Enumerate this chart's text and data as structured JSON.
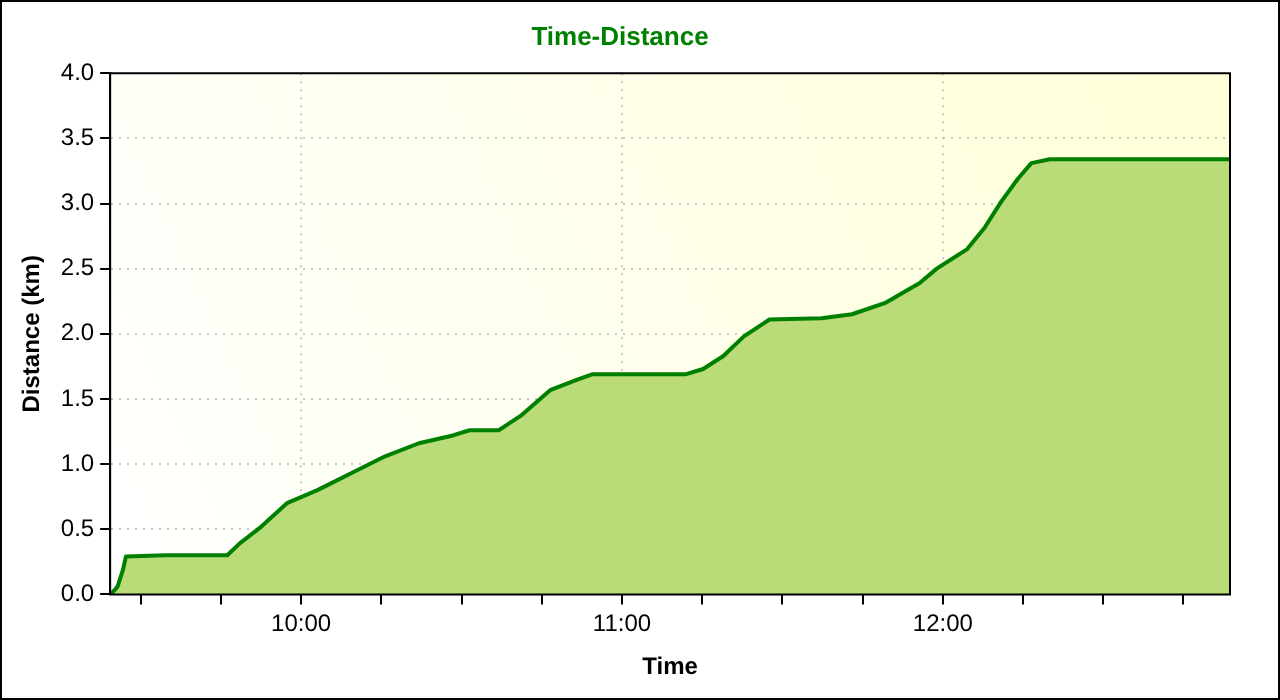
{
  "chart_data": {
    "type": "area",
    "title": "Time-Distance",
    "xlabel": "Time",
    "ylabel": "Distance (km)",
    "x": [
      9.407,
      9.428,
      9.445,
      9.454,
      9.576,
      9.77,
      9.808,
      9.871,
      9.956,
      10.051,
      10.156,
      10.262,
      10.367,
      10.473,
      10.525,
      10.616,
      10.684,
      10.778,
      10.863,
      10.909,
      11.0,
      11.2,
      11.253,
      11.316,
      11.38,
      11.46,
      11.622,
      11.717,
      11.823,
      11.928,
      11.981,
      12.076,
      12.129,
      12.181,
      12.234,
      12.276,
      12.333,
      12.892
    ],
    "series": [
      {
        "color": "#008000",
        "values": [
          0,
          0.06,
          0.19,
          0.29,
          0.3,
          0.3,
          0.39,
          0.51,
          0.7,
          0.8,
          0.93,
          1.06,
          1.16,
          1.22,
          1.26,
          1.26,
          1.37,
          1.57,
          1.65,
          1.69,
          1.69,
          1.69,
          1.73,
          1.83,
          1.98,
          2.11,
          2.12,
          2.15,
          2.24,
          2.39,
          2.5,
          2.65,
          2.81,
          3.01,
          3.19,
          3.31,
          3.34,
          3.34
        ]
      }
    ],
    "xlim": [
      9.405,
      12.895
    ],
    "xticks": [
      {
        "value": 9.5,
        "label": null
      },
      {
        "value": 9.75,
        "label": null
      },
      {
        "value": 10,
        "label": "10:00"
      },
      {
        "value": 10.25,
        "label": null
      },
      {
        "value": 10.5,
        "label": null
      },
      {
        "value": 10.75,
        "label": null
      },
      {
        "value": 11,
        "label": "11:00"
      },
      {
        "value": 11.25,
        "label": null
      },
      {
        "value": 11.5,
        "label": null
      },
      {
        "value": 11.75,
        "label": null
      },
      {
        "value": 12,
        "label": "12:00"
      },
      {
        "value": 12.25,
        "label": null
      },
      {
        "value": 12.5,
        "label": null
      },
      {
        "value": 12.75,
        "label": null
      }
    ],
    "ylim": [
      0,
      4
    ],
    "yticks": [
      {
        "value": 0,
        "label": "0.0"
      },
      {
        "value": 0.5,
        "label": "0.5"
      },
      {
        "value": 1,
        "label": "1.0"
      },
      {
        "value": 1.5,
        "label": "1.5"
      },
      {
        "value": 2,
        "label": "2.0"
      },
      {
        "value": 2.5,
        "label": "2.5"
      },
      {
        "value": 3,
        "label": "3.0"
      },
      {
        "value": 3.5,
        "label": "3.5"
      },
      {
        "value": 4,
        "label": "4.0"
      }
    ],
    "grid": true,
    "legend": false,
    "marker": "none",
    "line_style": "solid"
  }
}
